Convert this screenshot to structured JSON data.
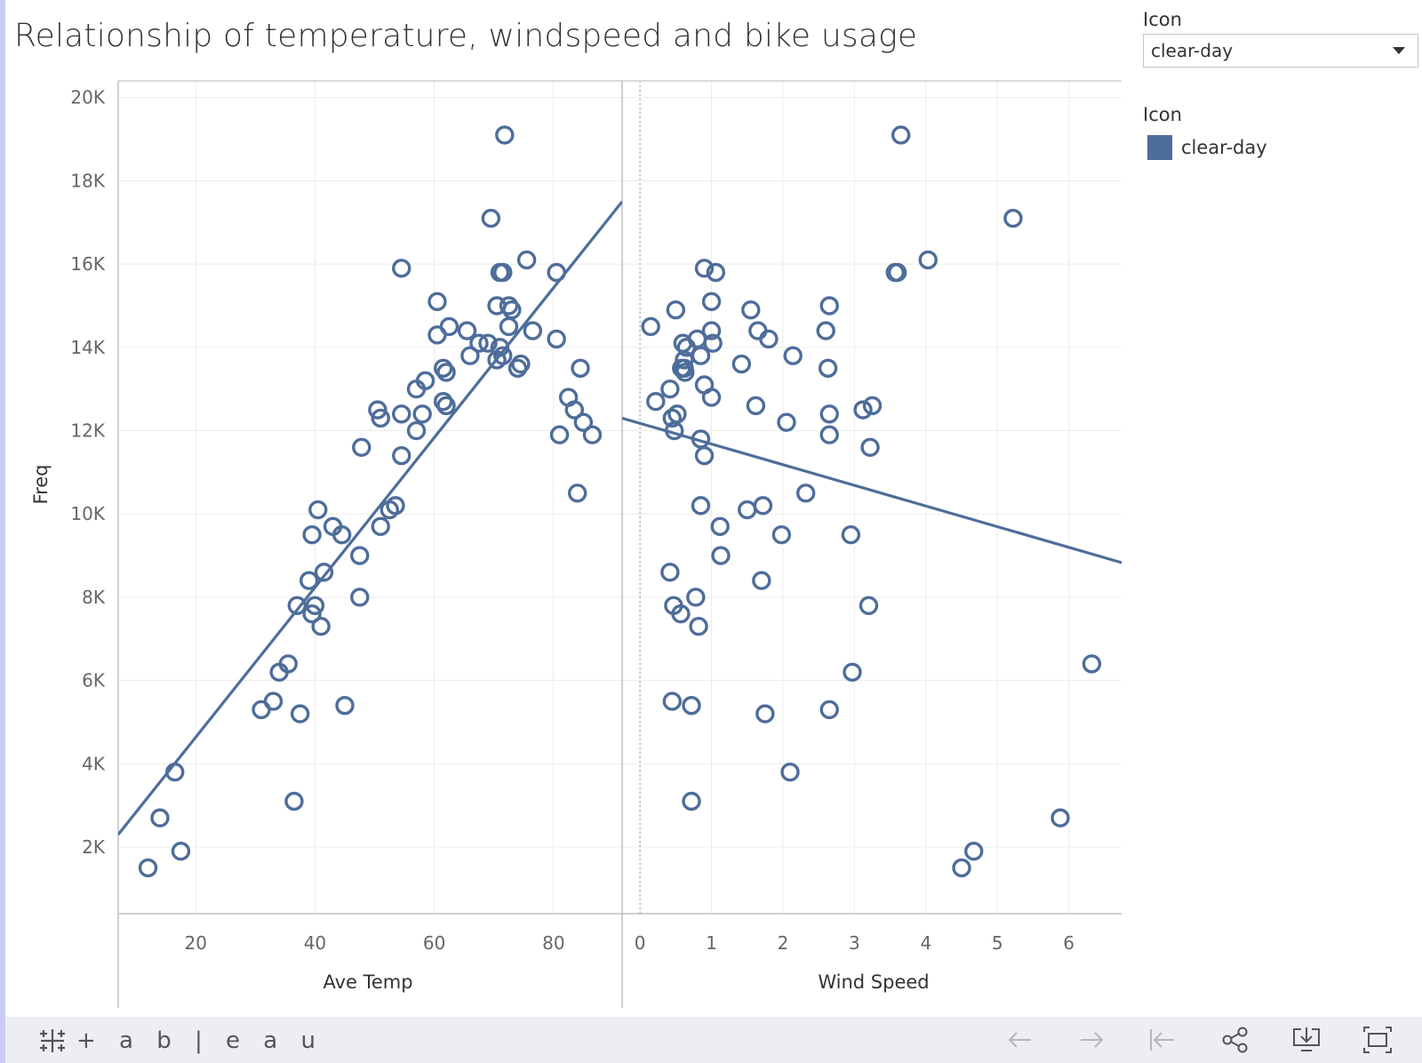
{
  "title": "Relationship of temperature, windspeed and bike usage",
  "filter": {
    "title": "Icon",
    "selected": "clear-day"
  },
  "legend": {
    "title": "Icon",
    "items": [
      {
        "label": "clear-day",
        "color": "#4e6d9a"
      }
    ]
  },
  "footer": {
    "brand": "+ a b | e a u"
  },
  "icons": {
    "brand": "tableau-logo-icon",
    "toolbar": [
      "undo-arrow-icon",
      "redo-arrow-icon",
      "revert-icon",
      "share-icon",
      "download-icon",
      "fullscreen-icon"
    ]
  },
  "chart_data": {
    "type": "scatter",
    "y_label": "Freq",
    "y_ticks": [
      "2K",
      "4K",
      "6K",
      "8K",
      "10K",
      "12K",
      "14K",
      "16K",
      "18K",
      "20K"
    ],
    "y_tick_values": [
      2000,
      4000,
      6000,
      8000,
      10000,
      12000,
      14000,
      16000,
      18000,
      20000
    ],
    "ylim": [
      400,
      20400
    ],
    "grid": true,
    "marker": "open-circle",
    "color": "#4e6d9a",
    "panels": [
      {
        "x_label": "Ave Temp",
        "x_ticks": [
          "20",
          "40",
          "60",
          "80"
        ],
        "x_tick_values": [
          20,
          40,
          60,
          80
        ],
        "xlim": [
          7,
          91.5
        ],
        "trend_line": [
          [
            7,
            2300
          ],
          [
            91.5,
            17500
          ]
        ],
        "points": [
          [
            12,
            1500
          ],
          [
            14,
            2700
          ],
          [
            16.5,
            3800
          ],
          [
            17.5,
            1900
          ],
          [
            31,
            5300
          ],
          [
            33,
            5500
          ],
          [
            34,
            6200
          ],
          [
            35.5,
            6400
          ],
          [
            36.5,
            3100
          ],
          [
            37,
            7800
          ],
          [
            37.5,
            5200
          ],
          [
            39,
            8400
          ],
          [
            39.5,
            7600
          ],
          [
            40,
            7800
          ],
          [
            40.5,
            10100
          ],
          [
            39.5,
            9500
          ],
          [
            41,
            7300
          ],
          [
            41.5,
            8600
          ],
          [
            43,
            9700
          ],
          [
            44.5,
            9500
          ],
          [
            45,
            5400
          ],
          [
            47.5,
            9000
          ],
          [
            47.5,
            8000
          ],
          [
            47.8,
            11600
          ],
          [
            50.5,
            12500
          ],
          [
            51,
            12300
          ],
          [
            51,
            9700
          ],
          [
            52.5,
            10100
          ],
          [
            53.5,
            10200
          ],
          [
            54.5,
            11400
          ],
          [
            54.5,
            12400
          ],
          [
            54.5,
            15900
          ],
          [
            57,
            12000
          ],
          [
            57,
            13000
          ],
          [
            58,
            12400
          ],
          [
            58.5,
            13200
          ],
          [
            60.5,
            14300
          ],
          [
            60.5,
            15100
          ],
          [
            61.5,
            12700
          ],
          [
            61.5,
            13500
          ],
          [
            62,
            12600
          ],
          [
            62,
            13400
          ],
          [
            62.5,
            14500
          ],
          [
            65.5,
            14400
          ],
          [
            66,
            13800
          ],
          [
            67.5,
            14100
          ],
          [
            69,
            14100
          ],
          [
            69.5,
            17100
          ],
          [
            70.5,
            15000
          ],
          [
            70.5,
            13700
          ],
          [
            71,
            14000
          ],
          [
            71,
            15800
          ],
          [
            71.5,
            13800
          ],
          [
            71.5,
            15800
          ],
          [
            71.8,
            19100
          ],
          [
            72.5,
            15000
          ],
          [
            72.5,
            14500
          ],
          [
            73,
            14900
          ],
          [
            74,
            13500
          ],
          [
            74.5,
            13600
          ],
          [
            75.5,
            16100
          ],
          [
            76.5,
            14400
          ],
          [
            80.5,
            15800
          ],
          [
            80.5,
            14200
          ],
          [
            81,
            11900
          ],
          [
            82.5,
            12800
          ],
          [
            83.5,
            12500
          ],
          [
            84,
            10500
          ],
          [
            84.5,
            13500
          ],
          [
            85,
            12200
          ],
          [
            86.5,
            11900
          ]
        ]
      },
      {
        "x_label": "Wind Speed",
        "x_ticks": [
          "0",
          "1",
          "2",
          "3",
          "4",
          "5",
          "6"
        ],
        "x_tick_values": [
          0,
          1,
          2,
          3,
          4,
          5,
          6
        ],
        "xlim": [
          -0.25,
          6.8
        ],
        "reference_line_x": 0,
        "trend_line": [
          [
            -0.25,
            12300
          ],
          [
            6.8,
            8800
          ]
        ],
        "points": [
          [
            0.15,
            14500
          ],
          [
            0.22,
            12700
          ],
          [
            0.42,
            8600
          ],
          [
            0.42,
            13000
          ],
          [
            0.45,
            5500
          ],
          [
            0.45,
            12300
          ],
          [
            0.47,
            7800
          ],
          [
            0.48,
            12000
          ],
          [
            0.5,
            14900
          ],
          [
            0.52,
            12400
          ],
          [
            0.57,
            7600
          ],
          [
            0.58,
            13500
          ],
          [
            0.6,
            14100
          ],
          [
            0.62,
            13700
          ],
          [
            0.62,
            13500
          ],
          [
            0.63,
            13400
          ],
          [
            0.65,
            14000
          ],
          [
            0.72,
            3100
          ],
          [
            0.72,
            5400
          ],
          [
            0.78,
            8000
          ],
          [
            0.8,
            14200
          ],
          [
            0.82,
            7300
          ],
          [
            0.85,
            11800
          ],
          [
            0.85,
            10200
          ],
          [
            0.85,
            13800
          ],
          [
            0.9,
            11400
          ],
          [
            0.9,
            13100
          ],
          [
            0.9,
            15900
          ],
          [
            1.0,
            12800
          ],
          [
            1.0,
            15100
          ],
          [
            1.0,
            14400
          ],
          [
            1.02,
            14100
          ],
          [
            1.06,
            15800
          ],
          [
            1.12,
            9700
          ],
          [
            1.13,
            9000
          ],
          [
            1.42,
            13600
          ],
          [
            1.5,
            10100
          ],
          [
            1.55,
            14900
          ],
          [
            1.62,
            12600
          ],
          [
            1.65,
            14400
          ],
          [
            1.7,
            8400
          ],
          [
            1.72,
            10200
          ],
          [
            1.75,
            5200
          ],
          [
            1.8,
            14200
          ],
          [
            1.98,
            9500
          ],
          [
            2.05,
            12200
          ],
          [
            2.1,
            3800
          ],
          [
            2.14,
            13800
          ],
          [
            2.32,
            10500
          ],
          [
            2.6,
            14400
          ],
          [
            2.63,
            13500
          ],
          [
            2.65,
            12400
          ],
          [
            2.65,
            11900
          ],
          [
            2.65,
            5300
          ],
          [
            2.65,
            15000
          ],
          [
            2.95,
            9500
          ],
          [
            2.97,
            6200
          ],
          [
            3.12,
            12500
          ],
          [
            3.2,
            7800
          ],
          [
            3.22,
            11600
          ],
          [
            3.25,
            12600
          ],
          [
            3.57,
            15800
          ],
          [
            3.6,
            15800
          ],
          [
            3.65,
            19100
          ],
          [
            4.03,
            16100
          ],
          [
            4.5,
            1500
          ],
          [
            4.67,
            1900
          ],
          [
            5.22,
            17100
          ],
          [
            5.88,
            2700
          ],
          [
            6.32,
            6400
          ]
        ]
      }
    ]
  }
}
